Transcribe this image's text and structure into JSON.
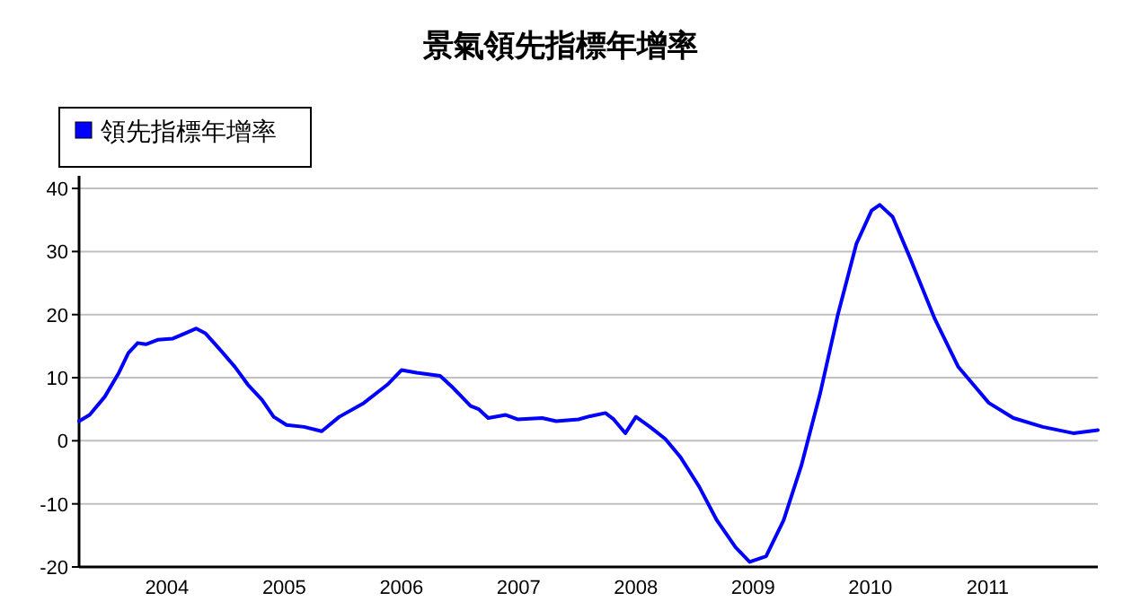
{
  "chart_data": {
    "type": "line",
    "title": "景氣領先指標年增率",
    "x": [
      2003.25,
      2003.34,
      2003.47,
      2003.59,
      2003.67,
      2003.75,
      2003.82,
      2003.92,
      2004.05,
      2004.15,
      2004.25,
      2004.33,
      2004.46,
      2004.58,
      2004.69,
      2004.81,
      2004.91,
      2005.02,
      2005.17,
      2005.32,
      2005.47,
      2005.68,
      2005.88,
      2006.0,
      2006.13,
      2006.33,
      2006.44,
      2006.59,
      2006.66,
      2006.74,
      2006.89,
      2006.99,
      2007.2,
      2007.32,
      2007.51,
      2007.61,
      2007.74,
      2007.81,
      2007.91,
      2008.0,
      2008.12,
      2008.25,
      2008.38,
      2008.54,
      2008.69,
      2008.85,
      2008.97,
      2009.11,
      2009.26,
      2009.41,
      2009.57,
      2009.72,
      2009.88,
      2010.01,
      2010.08,
      2010.19,
      2010.34,
      2010.55,
      2010.75,
      2011.01,
      2011.22,
      2011.47,
      2011.73,
      2011.94
    ],
    "series": [
      {
        "name": "領先指標年增率",
        "color": "#0000ff",
        "values": [
          3.1,
          4.1,
          7,
          10.8,
          13.9,
          15.5,
          15.3,
          16,
          16.2,
          17,
          17.8,
          17,
          14.3,
          11.7,
          8.9,
          6.5,
          3.8,
          2.5,
          2.2,
          1.5,
          3.8,
          6,
          8.9,
          11.2,
          10.8,
          10.3,
          8.4,
          5.5,
          5,
          3.6,
          4.1,
          3.4,
          3.6,
          3.1,
          3.4,
          3.9,
          4.4,
          3.4,
          1.2,
          3.8,
          2.2,
          0.3,
          -2.6,
          -7.3,
          -12.6,
          -16.9,
          -19.2,
          -18.3,
          -12.6,
          -4,
          7.4,
          19.8,
          31.2,
          36.5,
          37.4,
          35.5,
          28.9,
          19.3,
          11.7,
          6,
          3.6,
          2.2,
          1.2,
          1.7
        ]
      }
    ],
    "xlim": [
      2003.25,
      2011.94
    ],
    "xticks": [
      2004,
      2005,
      2006,
      2007,
      2008,
      2009,
      2010,
      2011
    ],
    "ylim": [
      -20,
      42
    ],
    "yticks": [
      -20,
      -10,
      0,
      10,
      20,
      30,
      40
    ],
    "grid": "y",
    "legend": "top left",
    "marker": "none",
    "line_style": "solid"
  }
}
